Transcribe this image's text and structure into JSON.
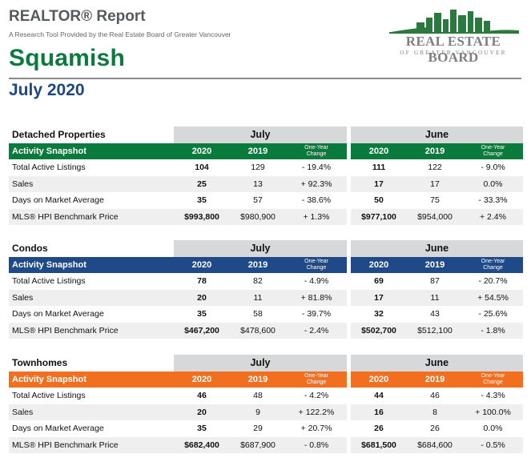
{
  "header": {
    "report_title": "REALTOR® Report",
    "subtitle": "A Research Tool Provided by the Real Estate Board of Greater Vancouver",
    "city": "Squamish",
    "date": "July 2020"
  },
  "logo": {
    "name": "REAL ESTATE BOARD",
    "sub": "OF GREATER VANCOUVER",
    "color": "#2a7a3f"
  },
  "columns": {
    "month1": "July",
    "month2": "June",
    "year_a": "2020",
    "year_b": "2019",
    "change_line1": "One-Year",
    "change_line2": "Change",
    "snapshot": "Activity Snapshot"
  },
  "row_labels": [
    "Total Active Listings",
    "Sales",
    "Days on Market Average",
    "MLS® HPI Benchmark Price"
  ],
  "sections": [
    {
      "title": "Detached Properties",
      "color": "#0b7a3d",
      "rows": [
        [
          "104",
          "129",
          "- 19.4%",
          "111",
          "122",
          "- 9.0%"
        ],
        [
          "25",
          "13",
          "+ 92.3%",
          "17",
          "17",
          "0.0%"
        ],
        [
          "35",
          "57",
          "- 38.6%",
          "50",
          "75",
          "- 33.3%"
        ],
        [
          "$993,800",
          "$980,900",
          "+ 1.3%",
          "$977,100",
          "$954,000",
          "+ 2.4%"
        ]
      ]
    },
    {
      "title": "Condos",
      "color": "#1f4a87",
      "rows": [
        [
          "78",
          "82",
          "- 4.9%",
          "69",
          "87",
          "- 20.7%"
        ],
        [
          "20",
          "11",
          "+ 81.8%",
          "17",
          "11",
          "+ 54.5%"
        ],
        [
          "35",
          "58",
          "- 39.7%",
          "32",
          "43",
          "- 25.6%"
        ],
        [
          "$467,200",
          "$478,600",
          "- 2.4%",
          "$502,700",
          "$512,100",
          "- 1.8%"
        ]
      ]
    },
    {
      "title": "Townhomes",
      "color": "#f26f1f",
      "rows": [
        [
          "46",
          "48",
          "- 4.2%",
          "44",
          "46",
          "- 4.3%"
        ],
        [
          "20",
          "9",
          "+ 122.2%",
          "16",
          "8",
          "+ 100.0%"
        ],
        [
          "35",
          "29",
          "+ 20.7%",
          "26",
          "26",
          "0.0%"
        ],
        [
          "$682,400",
          "$687,900",
          "- 0.8%",
          "$681,500",
          "$684,600",
          "- 0.5%"
        ]
      ]
    }
  ]
}
